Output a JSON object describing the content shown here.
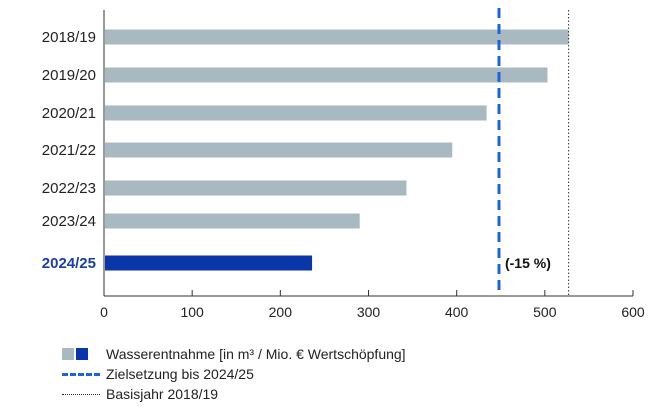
{
  "chart_data": {
    "type": "bar",
    "orientation": "horizontal",
    "categories": [
      "2018/19",
      "2019/20",
      "2020/21",
      "2021/22",
      "2022/23",
      "2023/24",
      "2024/25"
    ],
    "values": [
      527,
      503,
      434,
      395,
      343,
      290,
      236
    ],
    "highlight_category": "2024/25",
    "xlim": [
      0,
      600
    ],
    "xticks": [
      "0",
      "100",
      "200",
      "300",
      "400",
      "500",
      "600"
    ],
    "target_line": 448,
    "baseline_line": 527,
    "annotation": "(-15 %)",
    "grid": false,
    "legend_placement": "bottom-left",
    "colors": {
      "bar": "#a9b9c1",
      "bar_highlight": "#0b36a8",
      "target": "#1f64d6",
      "baseline": "#333333",
      "highlight_label": "#1c3f9e"
    }
  },
  "legend": {
    "items": [
      {
        "label": "Wasserentnahme [in m³ / Mio. € Wertschöpfung]",
        "icon": "bar-squares"
      },
      {
        "label": "Zielsetzung bis 2024/25",
        "icon": "dashed-line"
      },
      {
        "label": "Basisjahr 2018/19",
        "icon": "dotted-line"
      }
    ]
  }
}
